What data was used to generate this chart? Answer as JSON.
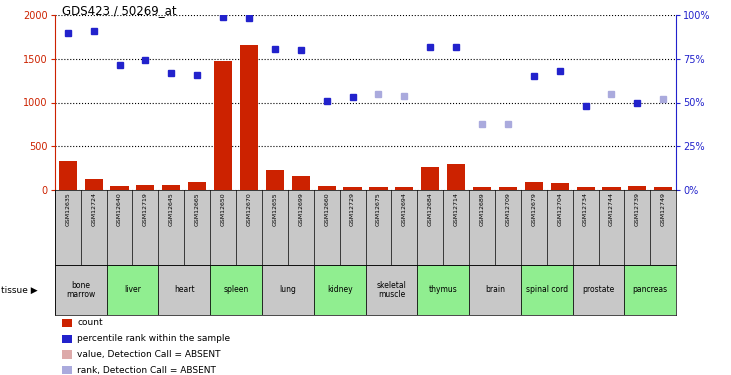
{
  "title": "GDS423 / 50269_at",
  "samples": [
    "GSM12635",
    "GSM12724",
    "GSM12640",
    "GSM12719",
    "GSM12645",
    "GSM12665",
    "GSM12650",
    "GSM12670",
    "GSM12655",
    "GSM12699",
    "GSM12660",
    "GSM12729",
    "GSM12675",
    "GSM12694",
    "GSM12684",
    "GSM12714",
    "GSM12689",
    "GSM12709",
    "GSM12679",
    "GSM12704",
    "GSM12734",
    "GSM12744",
    "GSM12739",
    "GSM12749"
  ],
  "tissues": [
    {
      "name": "bone\nmarrow",
      "start": 0,
      "end": 2,
      "color": "#c8c8c8"
    },
    {
      "name": "liver",
      "start": 2,
      "end": 4,
      "color": "#90ee90"
    },
    {
      "name": "heart",
      "start": 4,
      "end": 6,
      "color": "#c8c8c8"
    },
    {
      "name": "spleen",
      "start": 6,
      "end": 8,
      "color": "#90ee90"
    },
    {
      "name": "lung",
      "start": 8,
      "end": 10,
      "color": "#c8c8c8"
    },
    {
      "name": "kidney",
      "start": 10,
      "end": 12,
      "color": "#90ee90"
    },
    {
      "name": "skeletal\nmuscle",
      "start": 12,
      "end": 14,
      "color": "#c8c8c8"
    },
    {
      "name": "thymus",
      "start": 14,
      "end": 16,
      "color": "#90ee90"
    },
    {
      "name": "brain",
      "start": 16,
      "end": 18,
      "color": "#c8c8c8"
    },
    {
      "name": "spinal cord",
      "start": 18,
      "end": 20,
      "color": "#90ee90"
    },
    {
      "name": "prostate",
      "start": 20,
      "end": 22,
      "color": "#c8c8c8"
    },
    {
      "name": "pancreas",
      "start": 22,
      "end": 24,
      "color": "#90ee90"
    }
  ],
  "count_values": [
    330,
    130,
    50,
    55,
    55,
    90,
    1480,
    1660,
    230,
    155,
    50,
    35,
    35,
    30,
    260,
    300,
    30,
    35,
    90,
    80,
    30,
    30,
    50,
    35
  ],
  "count_absent": [
    false,
    false,
    false,
    false,
    false,
    false,
    false,
    false,
    false,
    false,
    false,
    false,
    false,
    false,
    false,
    false,
    false,
    false,
    false,
    false,
    false,
    false,
    false,
    false
  ],
  "rank_values": [
    1800,
    1820,
    1430,
    1490,
    1340,
    1310,
    1980,
    1970,
    1610,
    1600,
    1020,
    1060,
    1100,
    1080,
    1640,
    1640,
    750,
    760,
    1300,
    1360,
    960,
    1100,
    1000,
    1040
  ],
  "rank_absent": [
    false,
    false,
    false,
    false,
    false,
    false,
    false,
    false,
    false,
    false,
    false,
    false,
    true,
    true,
    false,
    false,
    true,
    true,
    false,
    false,
    false,
    true,
    false,
    true
  ],
  "ylim_left": [
    0,
    2000
  ],
  "ylim_right": [
    0,
    100
  ],
  "yticks_left": [
    0,
    500,
    1000,
    1500,
    2000
  ],
  "yticks_right": [
    0,
    25,
    50,
    75,
    100
  ],
  "bar_color": "#cc2200",
  "dot_color_present": "#2222cc",
  "dot_color_absent_val": "#ddaaaa",
  "dot_color_absent_rank": "#aaaadd",
  "bar_color_absent": "#f08080",
  "sample_bg_color": "#c8c8c8",
  "left_axis_color": "#cc2200",
  "right_axis_color": "#2222cc",
  "legend_items": [
    {
      "color": "#cc2200",
      "label": "count"
    },
    {
      "color": "#2222cc",
      "label": "percentile rank within the sample"
    },
    {
      "color": "#ddaaaa",
      "label": "value, Detection Call = ABSENT"
    },
    {
      "color": "#aaaadd",
      "label": "rank, Detection Call = ABSENT"
    }
  ]
}
